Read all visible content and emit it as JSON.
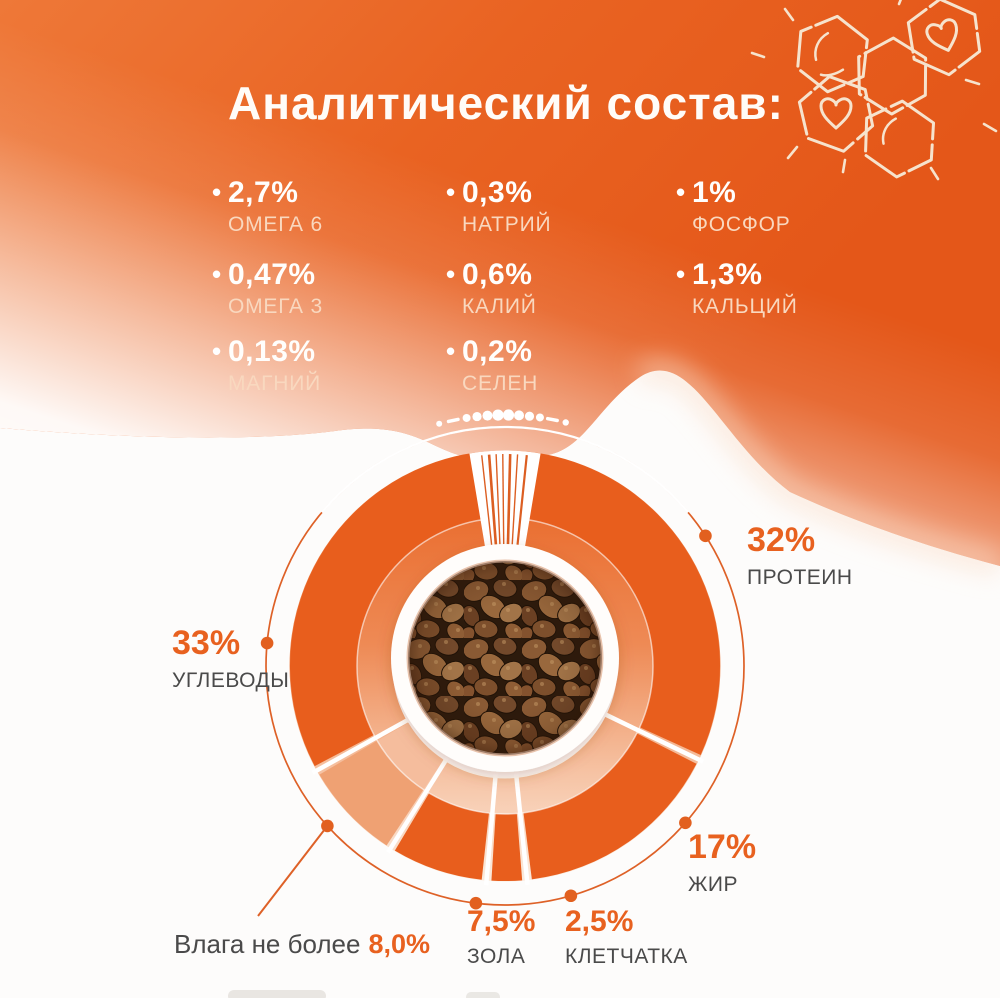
{
  "title": "Аналитический состав:",
  "nutrients": [
    {
      "value": "2,7%",
      "label": "ОМЕГА 6"
    },
    {
      "value": "0,47%",
      "label": "ОМЕГА 3"
    },
    {
      "value": "0,13%",
      "label": "МАГНИЙ"
    },
    {
      "value": "0,3%",
      "label": "НАТРИЙ"
    },
    {
      "value": "0,6%",
      "label": "КАЛИЙ"
    },
    {
      "value": "0,2%",
      "label": "СЕЛЕН"
    },
    {
      "value": "1%",
      "label": "ФОСФОР"
    },
    {
      "value": "1,3%",
      "label": "КАЛЬЦИЙ"
    }
  ],
  "chart_data": {
    "type": "pie",
    "subtype": "donut",
    "title": "Аналитический состав",
    "unit": "%",
    "segments": [
      {
        "label": "ПРОТЕИН",
        "value": 32,
        "display": "32%"
      },
      {
        "label": "ЖИР",
        "value": 17,
        "display": "17%"
      },
      {
        "label": "КЛЕТЧАТКА",
        "value": 2.5,
        "display": "2,5%"
      },
      {
        "label": "ЗОЛА",
        "value": 7.5,
        "display": "7,5%"
      },
      {
        "label": "ВЛАГА",
        "value": 8,
        "display": "8,0%",
        "prefix": "Влага не более",
        "light": true
      },
      {
        "label": "УГЛЕВОДЫ",
        "value": 33,
        "display": "33%"
      }
    ],
    "legend_position": "around",
    "center_content": "photo of dry kibble",
    "colors": {
      "segment": "#E85E1D",
      "segment_light": "#EFA173",
      "value_text": "#E8611F",
      "name_text": "#4A4A4A"
    }
  },
  "decor": {
    "honeycomb_icon": "hand-drawn honeycomb cells with hearts",
    "top_dots": "arc of white dots above donut"
  },
  "colors": {
    "background_orange": "#E8611F",
    "background_white": "#FFFFFF",
    "accent": "#E8611F"
  }
}
